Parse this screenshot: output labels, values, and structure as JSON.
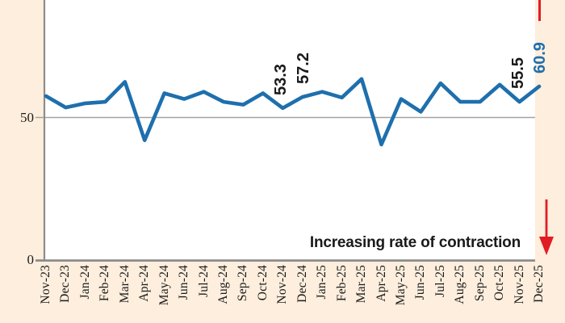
{
  "chart_data": {
    "type": "line",
    "title": "",
    "xlabel": "",
    "ylabel": "",
    "categories": [
      "Nov-23",
      "Dec-23",
      "Jan-24",
      "Feb-24",
      "Mar-24",
      "Apr-24",
      "May-24",
      "Jun-24",
      "Jul-24",
      "Aug-24",
      "Sep-24",
      "Oct-24",
      "Nov-24",
      "Dec-24",
      "Jan-25",
      "Feb-25",
      "Mar-25",
      "Apr-25",
      "May-25",
      "Jun-25",
      "Jul-25",
      "Aug-25",
      "Sep-25",
      "Oct-25",
      "Nov-25",
      "Dec-25"
    ],
    "values": [
      57.5,
      53.5,
      55,
      55.5,
      62.5,
      42,
      58.5,
      56.5,
      59,
      55.5,
      54.5,
      58.5,
      53.3,
      57.2,
      59,
      57,
      63.5,
      40.5,
      56.5,
      52,
      62,
      55.5,
      55.5,
      61.5,
      55.5,
      60.9
    ],
    "point_labels": [
      {
        "index": 12,
        "label": "53.3",
        "highlight": false
      },
      {
        "index": 13,
        "label": "57.2",
        "highlight": false
      },
      {
        "index": 24,
        "label": "55.5",
        "highlight": false
      },
      {
        "index": 25,
        "label": "60.9",
        "highlight": true
      }
    ],
    "yticks": [
      {
        "value": 50,
        "label": "50"
      },
      {
        "value": 0,
        "label": "0"
      }
    ],
    "ylim": [
      0,
      91
    ],
    "grid": "horizontal line at 50 only",
    "legend_position": "none",
    "annotation": "Increasing rate of contraction",
    "colors": {
      "line": "#1e6fad",
      "label_default": "#1a1a1a",
      "label_highlight": "#1e6fad",
      "background": "#fdeedd",
      "plot_background": "#ffffff",
      "axis": "#8c8c8c",
      "gridline": "#a3a3a3",
      "red_marker": "#e11d23",
      "annotation_text": "#1a1a1a"
    }
  }
}
